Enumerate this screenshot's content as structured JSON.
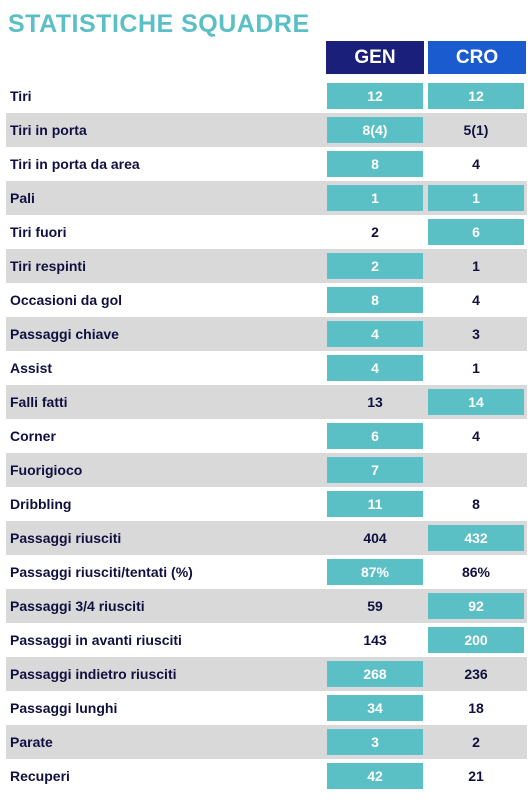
{
  "title": "STATISTICHE SQUADRE",
  "teams": {
    "home": "GEN",
    "away": "CRO"
  },
  "colors": {
    "accent": "#5bbfc6",
    "home_header": "#1a1f7a",
    "away_header": "#1a5bd0",
    "row_alt": "#d9d9d9"
  },
  "stats": [
    {
      "label": "Tiri",
      "home": "12",
      "away": "12",
      "hl": "both"
    },
    {
      "label": "Tiri in porta",
      "home": "8(4)",
      "away": "5(1)",
      "hl": "home"
    },
    {
      "label": "Tiri in porta da area",
      "home": "8",
      "away": "4",
      "hl": "home"
    },
    {
      "label": "Pali",
      "home": "1",
      "away": "1",
      "hl": "both"
    },
    {
      "label": "Tiri fuori",
      "home": "2",
      "away": "6",
      "hl": "away"
    },
    {
      "label": "Tiri respinti",
      "home": "2",
      "away": "1",
      "hl": "home"
    },
    {
      "label": "Occasioni da gol",
      "home": "8",
      "away": "4",
      "hl": "home"
    },
    {
      "label": "Passaggi chiave",
      "home": "4",
      "away": "3",
      "hl": "home"
    },
    {
      "label": "Assist",
      "home": "4",
      "away": "1",
      "hl": "home"
    },
    {
      "label": "Falli fatti",
      "home": "13",
      "away": "14",
      "hl": "away"
    },
    {
      "label": "Corner",
      "home": "6",
      "away": "4",
      "hl": "home"
    },
    {
      "label": "Fuorigioco",
      "home": "7",
      "away": "",
      "hl": "home"
    },
    {
      "label": "Dribbling",
      "home": "11",
      "away": "8",
      "hl": "home"
    },
    {
      "label": "Passaggi riusciti",
      "home": "404",
      "away": "432",
      "hl": "away"
    },
    {
      "label": "Passaggi riusciti/tentati (%)",
      "home": "87%",
      "away": "86%",
      "hl": "home"
    },
    {
      "label": "Passaggi 3/4 riusciti",
      "home": "59",
      "away": "92",
      "hl": "away"
    },
    {
      "label": "Passaggi in avanti riusciti",
      "home": "143",
      "away": "200",
      "hl": "away"
    },
    {
      "label": "Passaggi indietro riusciti",
      "home": "268",
      "away": "236",
      "hl": "home"
    },
    {
      "label": "Passaggi lunghi",
      "home": "34",
      "away": "18",
      "hl": "home"
    },
    {
      "label": "Parate",
      "home": "3",
      "away": "2",
      "hl": "home"
    },
    {
      "label": "Recuperi",
      "home": "42",
      "away": "21",
      "hl": "home"
    }
  ]
}
